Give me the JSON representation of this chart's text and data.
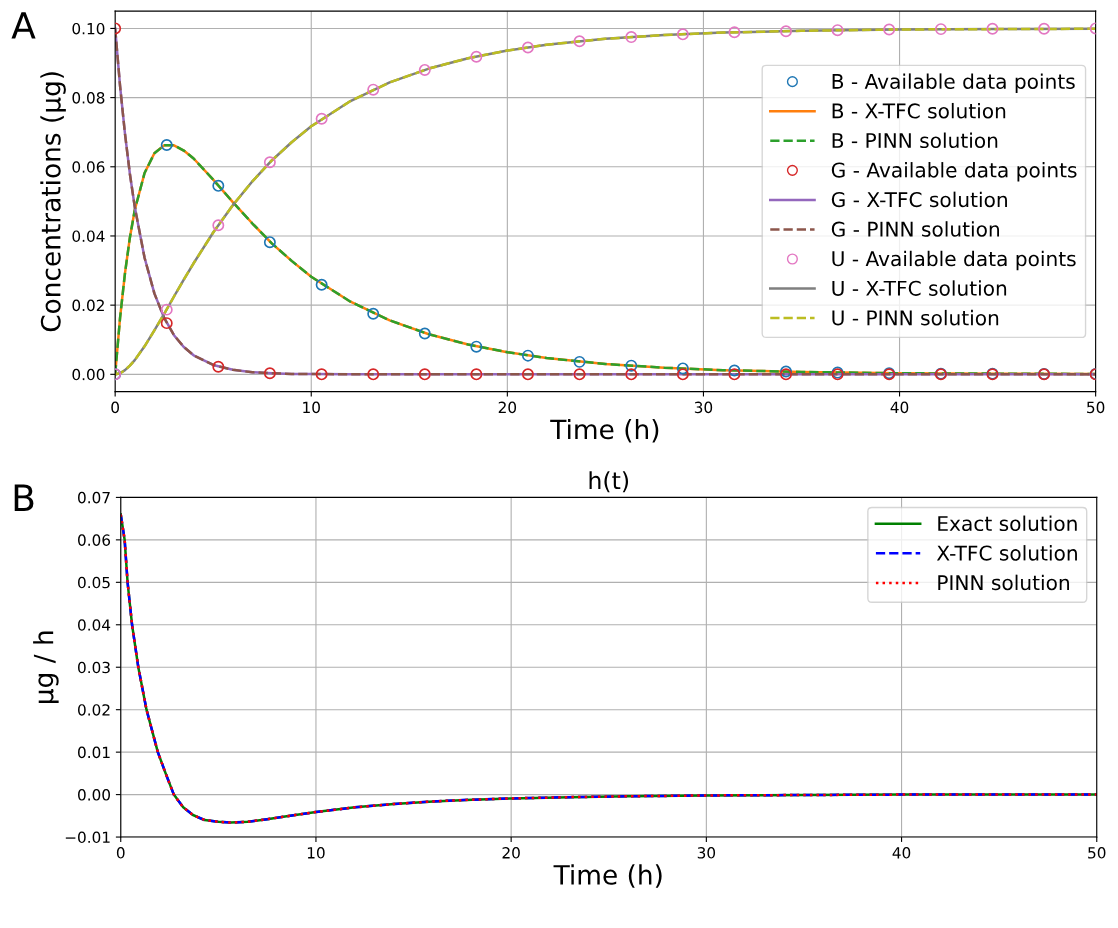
{
  "chart_data": [
    {
      "type": "line",
      "xlabel": "Time (h)",
      "ylabel": "Concentrations (μg)",
      "annotations": [
        "A"
      ],
      "xlim": [
        0,
        50
      ],
      "xticks": [
        0,
        10,
        20,
        30,
        40,
        50
      ],
      "ylim": [
        -0.005,
        0.105
      ],
      "yticks": [
        {
          "value": 0,
          "label": "0.00"
        },
        {
          "value": 0.02,
          "label": "0.02"
        },
        {
          "value": 0.04,
          "label": "0.04"
        },
        {
          "value": 0.06,
          "label": "0.06"
        },
        {
          "value": 0.08,
          "label": "0.08"
        },
        {
          "value": 0.1,
          "label": "0.10"
        }
      ],
      "grid": true,
      "legend": "right",
      "x": [
        0,
        0.25,
        0.5,
        0.75,
        1,
        1.5,
        2,
        2.5,
        3,
        3.5,
        4,
        5,
        6,
        7,
        8,
        9,
        10,
        12,
        14,
        16,
        18,
        20,
        22,
        25,
        28,
        31,
        35,
        40,
        45,
        50
      ],
      "series": [
        {
          "name": "B - Available data points",
          "type": "scatter",
          "marker": "circle",
          "color": "#1f77b4",
          "x": [
            0,
            2.63,
            5.26,
            7.89,
            10.53,
            13.16,
            15.79,
            18.42,
            21.05,
            23.68,
            26.32,
            28.95,
            31.58,
            34.21,
            36.84,
            39.47,
            42.11,
            44.74,
            47.37,
            50
          ],
          "values": [
            0,
            0.0663,
            0.0545,
            0.0382,
            0.0259,
            0.0175,
            0.0118,
            0.008,
            0.0054,
            0.0036,
            0.0025,
            0.0017,
            0.0011,
            0.0008,
            0.0005,
            0.0003,
            0.0002,
            0.0002,
            0.0001,
            0.0001
          ]
        },
        {
          "name": "B - X-TFC solution",
          "type": "line",
          "line_style": "solid",
          "color": "#ff7f0e",
          "values": [
            0,
            0.0163,
            0.0292,
            0.0395,
            0.0475,
            0.0582,
            0.0639,
            0.0662,
            0.0662,
            0.0647,
            0.0624,
            0.0563,
            0.0498,
            0.0436,
            0.0378,
            0.0328,
            0.0282,
            0.021,
            0.0156,
            0.0116,
            0.0086,
            0.0064,
            0.0047,
            0.003,
            0.0019,
            0.0012,
            0.0007,
            0.0003,
            0.0002,
            0.0001
          ]
        },
        {
          "name": "B - PINN solution",
          "type": "line",
          "line_style": "dashed",
          "color": "#2ca02c",
          "values": [
            0,
            0.0163,
            0.0292,
            0.0395,
            0.0475,
            0.0582,
            0.0639,
            0.0662,
            0.0662,
            0.0647,
            0.0624,
            0.0563,
            0.0498,
            0.0436,
            0.0378,
            0.0328,
            0.0282,
            0.021,
            0.0156,
            0.0116,
            0.0086,
            0.0064,
            0.0047,
            0.003,
            0.0019,
            0.0012,
            0.0007,
            0.0003,
            0.0002,
            0.0001
          ]
        },
        {
          "name": "G - Available data points",
          "type": "scatter",
          "marker": "circle",
          "color": "#d62728",
          "x": [
            0,
            2.63,
            5.26,
            7.89,
            10.53,
            13.16,
            15.79,
            18.42,
            21.05,
            23.68,
            26.32,
            28.95,
            31.58,
            34.21,
            36.84,
            39.47,
            42.11,
            44.74,
            47.37,
            50
          ],
          "values": [
            0.1,
            0.0148,
            0.0022,
            0.0003,
            0,
            0,
            0,
            0,
            0,
            0,
            0,
            0,
            0,
            0,
            0,
            0,
            0,
            0,
            0,
            0
          ]
        },
        {
          "name": "G - X-TFC solution",
          "type": "line",
          "line_style": "solid",
          "color": "#9467bd",
          "values": [
            0.1,
            0.0834,
            0.0696,
            0.058,
            0.0484,
            0.0337,
            0.0234,
            0.0163,
            0.0113,
            0.0079,
            0.0055,
            0.0027,
            0.0013,
            0.0006,
            0.0003,
            0.0001,
            0.0001,
            0,
            0,
            0,
            0,
            0,
            0,
            0,
            0,
            0,
            0,
            0,
            0,
            0
          ]
        },
        {
          "name": "G - PINN solution",
          "type": "line",
          "line_style": "dashed",
          "color": "#8c564b",
          "values": [
            0.1,
            0.0834,
            0.0696,
            0.058,
            0.0484,
            0.0337,
            0.0234,
            0.0163,
            0.0113,
            0.0079,
            0.0055,
            0.0027,
            0.0013,
            0.0006,
            0.0003,
            0.0001,
            0.0001,
            0,
            0,
            0,
            0,
            0,
            0,
            0,
            0,
            0,
            0,
            0,
            0,
            0
          ]
        },
        {
          "name": "U - Available data points",
          "type": "scatter",
          "marker": "circle",
          "color": "#e377c2",
          "x": [
            0,
            2.63,
            5.26,
            7.89,
            10.53,
            13.16,
            15.79,
            18.42,
            21.05,
            23.68,
            26.32,
            28.95,
            31.58,
            34.21,
            36.84,
            39.47,
            42.11,
            44.74,
            47.37,
            50
          ],
          "values": [
            0,
            0.0187,
            0.0431,
            0.0613,
            0.0739,
            0.0823,
            0.088,
            0.0918,
            0.0945,
            0.0963,
            0.0975,
            0.0983,
            0.0989,
            0.0992,
            0.0995,
            0.0997,
            0.0998,
            0.0999,
            0.0999,
            0.1
          ]
        },
        {
          "name": "U - X-TFC solution",
          "type": "line",
          "line_style": "solid",
          "color": "#7f7f7f",
          "values": [
            0,
            0.0003,
            0.0012,
            0.0025,
            0.0041,
            0.0081,
            0.0127,
            0.0175,
            0.0225,
            0.0274,
            0.0321,
            0.041,
            0.0489,
            0.0558,
            0.0619,
            0.0671,
            0.0717,
            0.079,
            0.0844,
            0.0884,
            0.0914,
            0.0936,
            0.0953,
            0.097,
            0.0981,
            0.0988,
            0.0993,
            0.0997,
            0.0998,
            0.0999
          ]
        },
        {
          "name": "U - PINN solution",
          "type": "line",
          "line_style": "dashed",
          "color": "#bcbd22",
          "values": [
            0,
            0.0003,
            0.0012,
            0.0025,
            0.0041,
            0.0081,
            0.0127,
            0.0175,
            0.0225,
            0.0274,
            0.0321,
            0.041,
            0.0489,
            0.0558,
            0.0619,
            0.0671,
            0.0717,
            0.079,
            0.0844,
            0.0884,
            0.0914,
            0.0936,
            0.0953,
            0.097,
            0.0981,
            0.0988,
            0.0993,
            0.0997,
            0.0998,
            0.0999
          ]
        }
      ]
    },
    {
      "type": "line",
      "title": "h(t)",
      "xlabel": "Time (h)",
      "ylabel": "μg / h",
      "annotations": [
        "B"
      ],
      "xlim": [
        0,
        50
      ],
      "xticks": [
        0,
        10,
        20,
        30,
        40,
        50
      ],
      "ylim": [
        -0.01,
        0.07
      ],
      "yticks": [
        {
          "value": -0.01,
          "label": "−0.01"
        },
        {
          "value": 0,
          "label": "0.00"
        },
        {
          "value": 0.01,
          "label": "0.01"
        },
        {
          "value": 0.02,
          "label": "0.02"
        },
        {
          "value": 0.03,
          "label": "0.03"
        },
        {
          "value": 0.04,
          "label": "0.04"
        },
        {
          "value": 0.05,
          "label": "0.05"
        },
        {
          "value": 0.06,
          "label": "0.06"
        },
        {
          "value": 0.07,
          "label": "0.07"
        }
      ],
      "grid": true,
      "legend": "top right",
      "x": [
        0,
        0.2,
        0.35,
        0.58,
        0.9,
        1.32,
        1.9,
        2.3,
        2.72,
        3.2,
        3.7,
        4.3,
        5,
        5.65,
        6.5,
        7.5,
        8.5,
        10,
        12,
        14,
        16,
        18,
        20,
        23,
        26,
        30,
        35,
        40,
        45,
        50
      ],
      "series": [
        {
          "name": "Exact solution",
          "type": "line",
          "line_style": "solid",
          "color": "#008000",
          "values": [
            0.066,
            0.06,
            0.05,
            0.04,
            0.03,
            0.02,
            0.01,
            0.005,
            0,
            -0.003,
            -0.0048,
            -0.006,
            -0.0064,
            -0.0066,
            -0.0064,
            -0.0058,
            -0.0051,
            -0.0041,
            -0.003,
            -0.0022,
            -0.0016,
            -0.0012,
            -0.0009,
            -0.0006,
            -0.0004,
            -0.0002,
            -0.0001,
            0,
            0,
            0
          ]
        },
        {
          "name": "X-TFC solution",
          "type": "line",
          "line_style": "dashed",
          "color": "#0000ff",
          "values": [
            0.066,
            0.06,
            0.05,
            0.04,
            0.03,
            0.02,
            0.01,
            0.005,
            0,
            -0.003,
            -0.0048,
            -0.006,
            -0.0064,
            -0.0066,
            -0.0064,
            -0.0058,
            -0.0051,
            -0.0041,
            -0.003,
            -0.0022,
            -0.0016,
            -0.0012,
            -0.0009,
            -0.0006,
            -0.0004,
            -0.0002,
            -0.0001,
            0,
            0,
            0
          ]
        },
        {
          "name": "PINN solution",
          "type": "line",
          "line_style": "dotted",
          "color": "#ff0000",
          "values": [
            0.066,
            0.06,
            0.05,
            0.04,
            0.03,
            0.02,
            0.01,
            0.005,
            0,
            -0.003,
            -0.0048,
            -0.006,
            -0.0064,
            -0.0066,
            -0.0064,
            -0.0058,
            -0.0051,
            -0.0041,
            -0.003,
            -0.0022,
            -0.0016,
            -0.0012,
            -0.0009,
            -0.0006,
            -0.0004,
            -0.0002,
            -0.0001,
            0,
            0,
            0
          ]
        }
      ]
    }
  ]
}
